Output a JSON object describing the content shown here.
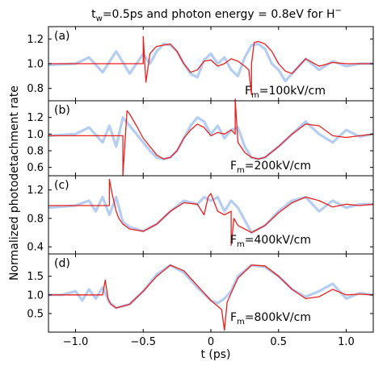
{
  "figure": {
    "title_parts": [
      "t",
      "w",
      "=0.5ps and photon energy = 0.8eV for H",
      "−"
    ],
    "ylabel": "Normalized photodetachment rate",
    "xlabel": "t (ps)"
  },
  "colors": {
    "smooth": "#b5cdf2",
    "field": "#e8201e"
  },
  "chart_data": [
    {
      "type": "line",
      "panel": "(a)",
      "field_label": [
        "F",
        "m",
        "=100kV/cm"
      ],
      "xlim": [
        -1.2,
        1.2
      ],
      "ylim": [
        0.7,
        1.3
      ],
      "yticks": [
        0.8,
        1.0,
        1.2
      ],
      "ytick_labels": [
        "0.8",
        "1.0",
        "1.2"
      ],
      "xticks": [
        -1.0,
        -0.5,
        0,
        0.5,
        1.0
      ],
      "xtick_labels": [],
      "series": [
        {
          "x": [
            -1.2,
            -1.0,
            -0.9,
            -0.8,
            -0.7,
            -0.6,
            -0.5,
            -0.45,
            -0.4,
            -0.35,
            -0.3,
            -0.25,
            -0.2,
            -0.15,
            -0.1,
            -0.05,
            0.0,
            0.05,
            0.1,
            0.15,
            0.2,
            0.25,
            0.3,
            0.35,
            0.4,
            0.45,
            0.5,
            0.55,
            0.6,
            0.7,
            0.8,
            0.9,
            1.0,
            1.1,
            1.2
          ],
          "y": [
            0.99,
            1.0,
            1.05,
            0.93,
            1.1,
            0.92,
            1.08,
            1.0,
            1.1,
            1.16,
            1.15,
            1.1,
            1.0,
            0.92,
            0.89,
            1.03,
            1.08,
            1.0,
            1.05,
            0.95,
            0.9,
            1.05,
            1.15,
            1.16,
            1.12,
            1.0,
            0.95,
            0.86,
            0.92,
            1.04,
            0.95,
            1.02,
            0.98,
            1.0,
            1.0
          ]
        },
        {
          "x": [
            -1.2,
            -0.5,
            -0.5,
            -0.48,
            -0.45,
            -0.42,
            -0.4,
            -0.35,
            -0.3,
            -0.25,
            -0.2,
            -0.15,
            -0.1,
            -0.05,
            0.0,
            0.05,
            0.1,
            0.15,
            0.2,
            0.25,
            0.28,
            0.3,
            0.3,
            0.32,
            0.35,
            0.4,
            0.45,
            0.5,
            0.55,
            0.6,
            0.7,
            0.8,
            0.9,
            1.0,
            1.2
          ],
          "y": [
            1.0,
            1.0,
            1.22,
            0.85,
            1.08,
            1.12,
            1.14,
            1.15,
            1.16,
            1.1,
            1.0,
            0.93,
            0.95,
            1.02,
            1.03,
            0.98,
            1.0,
            1.04,
            1.02,
            0.98,
            0.95,
            0.75,
            1.0,
            1.17,
            1.18,
            1.16,
            1.1,
            1.0,
            0.94,
            0.92,
            1.04,
            0.98,
            1.01,
            1.0,
            1.0
          ]
        }
      ]
    },
    {
      "type": "line",
      "panel": "(b)",
      "field_label": [
        "F",
        "m",
        "=200kV/cm"
      ],
      "xlim": [
        -1.2,
        1.2
      ],
      "ylim": [
        0.5,
        1.4
      ],
      "yticks": [
        0.6,
        0.8,
        1.0,
        1.2
      ],
      "ytick_labels": [
        "0.6",
        "0.8",
        "1.0",
        "1.2"
      ],
      "xticks": [
        -1.0,
        -0.5,
        0,
        0.5,
        1.0
      ],
      "xtick_labels": [],
      "series": [
        {
          "x": [
            -1.2,
            -1.0,
            -0.9,
            -0.8,
            -0.75,
            -0.7,
            -0.65,
            -0.6,
            -0.55,
            -0.5,
            -0.45,
            -0.4,
            -0.35,
            -0.3,
            -0.25,
            -0.2,
            -0.15,
            -0.1,
            -0.05,
            0.0,
            0.05,
            0.1,
            0.15,
            0.2,
            0.25,
            0.3,
            0.35,
            0.4,
            0.5,
            0.6,
            0.7,
            0.8,
            0.9,
            1.0,
            1.1,
            1.2
          ],
          "y": [
            0.98,
            1.0,
            1.08,
            0.9,
            1.1,
            0.85,
            1.2,
            1.1,
            1.0,
            0.9,
            0.8,
            0.72,
            0.7,
            0.72,
            0.8,
            0.95,
            1.1,
            1.2,
            1.15,
            1.0,
            1.1,
            0.95,
            1.05,
            1.08,
            0.85,
            0.72,
            0.7,
            0.72,
            0.85,
            1.0,
            1.15,
            1.0,
            0.9,
            1.05,
            0.97,
            1.0
          ]
        },
        {
          "x": [
            -1.2,
            -0.65,
            -0.65,
            -0.62,
            -0.6,
            -0.55,
            -0.5,
            -0.45,
            -0.4,
            -0.35,
            -0.3,
            -0.25,
            -0.2,
            -0.15,
            -0.1,
            -0.05,
            0.0,
            0.05,
            0.1,
            0.15,
            0.18,
            0.18,
            0.2,
            0.25,
            0.3,
            0.35,
            0.4,
            0.5,
            0.6,
            0.7,
            0.8,
            0.9,
            1.0,
            1.1,
            1.2
          ],
          "y": [
            0.98,
            0.98,
            0.5,
            1.28,
            1.24,
            1.1,
            0.95,
            0.85,
            0.75,
            0.7,
            0.72,
            0.8,
            0.95,
            1.05,
            1.12,
            1.08,
            0.98,
            1.02,
            1.0,
            1.05,
            1.0,
            1.42,
            0.9,
            0.78,
            0.72,
            0.7,
            0.72,
            0.85,
            1.0,
            1.12,
            1.1,
            0.98,
            0.96,
            0.98,
            1.0
          ]
        }
      ]
    },
    {
      "type": "line",
      "panel": "(c)",
      "field_label": [
        "F",
        "m",
        "=400kV/cm"
      ],
      "xlim": [
        -1.2,
        1.2
      ],
      "ylim": [
        0.3,
        1.4
      ],
      "yticks": [
        0.4,
        0.8,
        1.2
      ],
      "ytick_labels": [
        "0.4",
        "0.8",
        "1.2"
      ],
      "xticks": [
        -1.0,
        -0.5,
        0,
        0.5,
        1.0
      ],
      "xtick_labels": [],
      "series": [
        {
          "x": [
            -1.2,
            -1.0,
            -0.9,
            -0.85,
            -0.8,
            -0.75,
            -0.7,
            -0.65,
            -0.6,
            -0.5,
            -0.4,
            -0.3,
            -0.2,
            -0.1,
            -0.05,
            0.0,
            0.05,
            0.1,
            0.15,
            0.2,
            0.3,
            0.4,
            0.5,
            0.6,
            0.7,
            0.8,
            0.9,
            1.0,
            1.1,
            1.2
          ],
          "y": [
            0.95,
            0.98,
            1.05,
            0.9,
            1.1,
            0.85,
            1.1,
            0.75,
            0.68,
            0.62,
            0.72,
            0.9,
            1.05,
            1.0,
            1.1,
            1.05,
            1.1,
            0.9,
            1.05,
            0.95,
            0.6,
            0.7,
            0.9,
            1.05,
            1.1,
            0.9,
            1.05,
            0.95,
            1.0,
            1.0
          ]
        },
        {
          "x": [
            -1.2,
            -0.75,
            -0.75,
            -0.73,
            -0.7,
            -0.68,
            -0.65,
            -0.6,
            -0.5,
            -0.4,
            -0.3,
            -0.2,
            -0.1,
            -0.05,
            -0.02,
            0.0,
            0.05,
            0.1,
            0.15,
            0.15,
            0.17,
            0.2,
            0.3,
            0.4,
            0.5,
            0.6,
            0.7,
            0.8,
            0.9,
            1.0,
            1.1,
            1.2
          ],
          "y": [
            0.98,
            0.98,
            1.35,
            1.15,
            0.9,
            0.8,
            0.72,
            0.65,
            0.62,
            0.72,
            0.9,
            1.02,
            1.0,
            0.85,
            1.1,
            1.15,
            0.9,
            0.85,
            0.9,
            0.42,
            0.8,
            0.7,
            0.6,
            0.7,
            0.88,
            1.02,
            1.1,
            1.05,
            0.96,
            1.0,
            0.98,
            1.0
          ]
        }
      ]
    },
    {
      "type": "line",
      "panel": "(d)",
      "field_label": [
        "F",
        "m",
        "=800kV/cm"
      ],
      "xlim": [
        -1.2,
        1.2
      ],
      "ylim": [
        0.0,
        2.1
      ],
      "yticks": [
        0.5,
        1.0,
        1.5
      ],
      "ytick_labels": [
        "0.5",
        "1.0",
        "1.5"
      ],
      "xticks": [
        -1.0,
        -0.5,
        0,
        0.5,
        1.0
      ],
      "xtick_labels": [
        "−1.0",
        "−0.5",
        "0",
        "0.5",
        "1.0"
      ],
      "series": [
        {
          "x": [
            -1.2,
            -1.1,
            -1.0,
            -0.95,
            -0.9,
            -0.85,
            -0.8,
            -0.75,
            -0.7,
            -0.6,
            -0.5,
            -0.4,
            -0.3,
            -0.2,
            -0.1,
            0.0,
            0.05,
            0.1,
            0.15,
            0.2,
            0.3,
            0.4,
            0.5,
            0.6,
            0.7,
            0.8,
            0.9,
            1.0,
            1.1,
            1.2
          ],
          "y": [
            1.0,
            1.0,
            1.1,
            0.85,
            1.15,
            0.9,
            1.2,
            0.8,
            0.65,
            0.75,
            1.1,
            1.55,
            1.8,
            1.6,
            1.2,
            0.85,
            0.78,
            0.9,
            1.1,
            1.5,
            1.8,
            1.75,
            1.5,
            1.15,
            0.95,
            1.1,
            1.3,
            0.9,
            1.05,
            1.0
          ]
        },
        {
          "x": [
            -1.2,
            -0.8,
            -0.78,
            -0.76,
            -0.74,
            -0.72,
            -0.7,
            -0.6,
            -0.5,
            -0.4,
            -0.3,
            -0.2,
            -0.1,
            0.0,
            0.05,
            0.08,
            0.1,
            0.12,
            0.15,
            0.2,
            0.3,
            0.4,
            0.5,
            0.6,
            0.7,
            0.8,
            0.9,
            1.0,
            1.1,
            1.2
          ],
          "y": [
            1.0,
            1.0,
            1.4,
            0.9,
            0.75,
            0.7,
            0.65,
            0.75,
            1.1,
            1.5,
            1.8,
            1.65,
            1.25,
            0.85,
            0.7,
            0.6,
            0.05,
            0.8,
            1.05,
            1.45,
            1.8,
            1.78,
            1.5,
            1.15,
            0.9,
            0.95,
            1.15,
            1.0,
            1.02,
            1.0
          ]
        }
      ]
    }
  ]
}
